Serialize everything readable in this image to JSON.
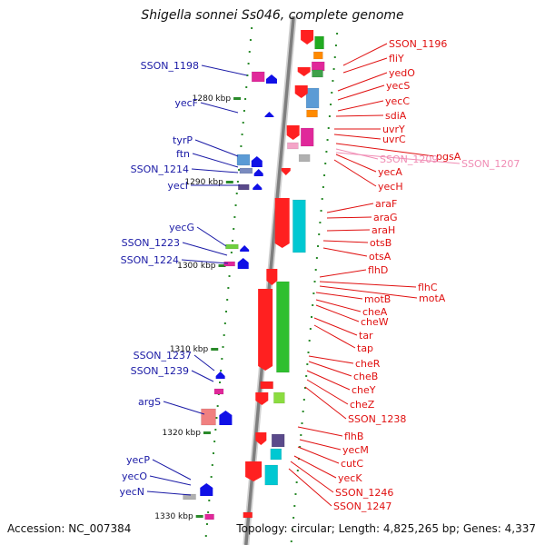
{
  "title": "Shigella sonnei Ss046, complete genome",
  "footer": {
    "accession": "Accession: NC_007384",
    "topology": "Topology: circular; Length: 4,825,265 bp; Genes: 4,337"
  },
  "colors": {
    "left_label": "#1a1aa6",
    "right_label": "#e01010",
    "pink_label": "#f08cb4",
    "backbone": "#7f7f7f",
    "tick": "#2a8a2a",
    "strand_minus": "#1010e6",
    "strand_plus": "#f01010"
  },
  "ruler": [
    {
      "label": "1280 kbp"
    },
    {
      "label": "1290 kbp"
    },
    {
      "label": "1300 kbp"
    },
    {
      "label": "1310 kbp"
    },
    {
      "label": "1320 kbp"
    },
    {
      "label": "1330 kbp"
    }
  ],
  "left_labels": [
    {
      "label": "SSON_1198"
    },
    {
      "label": "yecF"
    },
    {
      "label": "tyrP"
    },
    {
      "label": "ftn"
    },
    {
      "label": "SSON_1214"
    },
    {
      "label": "yecI"
    },
    {
      "label": "yecG"
    },
    {
      "label": "SSON_1223"
    },
    {
      "label": "SSON_1224"
    },
    {
      "label": "SSON_1237"
    },
    {
      "label": "SSON_1239"
    },
    {
      "label": "argS"
    },
    {
      "label": "yecP"
    },
    {
      "label": "yecO"
    },
    {
      "label": "yecN"
    }
  ],
  "right_labels": [
    {
      "label": "SSON_1196"
    },
    {
      "label": "fliY"
    },
    {
      "label": "yedO"
    },
    {
      "label": "yecS"
    },
    {
      "label": "yecC"
    },
    {
      "label": "sdiA"
    },
    {
      "label": "uvrY"
    },
    {
      "label": "uvrC"
    },
    {
      "label": "pgsA"
    },
    {
      "label": "SSON_1209"
    },
    {
      "label": "SSON_1207"
    },
    {
      "label": "yecA"
    },
    {
      "label": "yecH"
    },
    {
      "label": "araF"
    },
    {
      "label": "araG"
    },
    {
      "label": "araH"
    },
    {
      "label": "otsB"
    },
    {
      "label": "otsA"
    },
    {
      "label": "flhD"
    },
    {
      "label": "flhC"
    },
    {
      "label": "motA"
    },
    {
      "label": "motB"
    },
    {
      "label": "cheA"
    },
    {
      "label": "cheW"
    },
    {
      "label": "tar"
    },
    {
      "label": "tap"
    },
    {
      "label": "cheR"
    },
    {
      "label": "cheB"
    },
    {
      "label": "cheY"
    },
    {
      "label": "cheZ"
    },
    {
      "label": "SSON_1238"
    },
    {
      "label": "flhB"
    },
    {
      "label": "yecM"
    },
    {
      "label": "cutC"
    },
    {
      "label": "yecK"
    },
    {
      "label": "SSON_1246"
    },
    {
      "label": "SSON_1247"
    }
  ]
}
